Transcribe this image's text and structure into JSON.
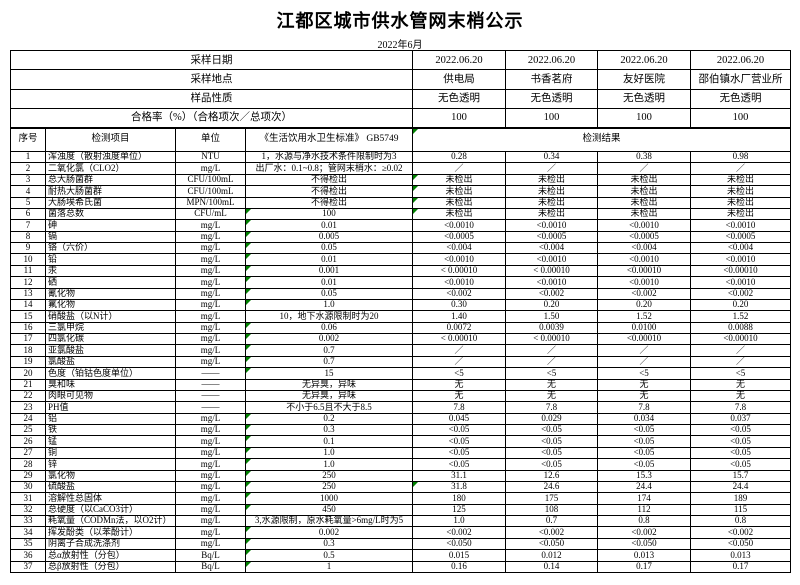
{
  "title": "江都区城市供水管网末梢公示",
  "subtitle": "2022年6月",
  "colors": {
    "flag_triangle_green": "#008000",
    "border": "#000000"
  },
  "info_rows": [
    {
      "label": "采样日期",
      "values": [
        "2022.06.20",
        "2022.06.20",
        "2022.06.20",
        "2022.06.20"
      ]
    },
    {
      "label": "采样地点",
      "values": [
        "供电局",
        "书香茗府",
        "友好医院",
        "邵伯镇水厂营业所"
      ]
    },
    {
      "label": "样品性质",
      "values": [
        "无色透明",
        "无色透明",
        "无色透明",
        "无色透明"
      ]
    },
    {
      "label": "合格率（%）（合格项次／总项次）",
      "values": [
        "100",
        "100",
        "100",
        "100"
      ]
    }
  ],
  "main_table": {
    "headers": {
      "no": "序号",
      "item": "检测项目",
      "unit": "单位",
      "standard": "《生活饮用水卫生标准》 GB5749",
      "results": "检测结果"
    },
    "rows": [
      {
        "no": "1",
        "item": "浑浊度（散射浊度单位）",
        "unit": "NTU",
        "standard": "1，水源与净水技术条件限制时为3",
        "results": [
          "0.28",
          "0.34",
          "0.38",
          "0.98"
        ]
      },
      {
        "no": "2",
        "item": "二氧化氯（CLO2）",
        "unit": "mg/L",
        "standard": "出厂水：0.1~0.8；管网末梢水：≥0.02",
        "results": [
          "／",
          "／",
          "／",
          "／"
        ]
      },
      {
        "no": "3",
        "item": "总大肠菌群",
        "unit": "CFU/100mL",
        "standard": "不得检出",
        "results": [
          "未检出",
          "未检出",
          "未检出",
          "未检出"
        ],
        "res1_mark": true
      },
      {
        "no": "4",
        "item": "耐热大肠菌群",
        "unit": "CFU/100mL",
        "standard": "不得检出",
        "results": [
          "未检出",
          "未检出",
          "未检出",
          "未检出"
        ],
        "res1_mark": true
      },
      {
        "no": "5",
        "item": "大肠埃希氏菌",
        "unit": "MPN/100mL",
        "standard": "不得检出",
        "results": [
          "未检出",
          "未检出",
          "未检出",
          "未检出"
        ],
        "res1_mark": true
      },
      {
        "no": "6",
        "item": "菌落总数",
        "unit": "CFU/mL",
        "standard": "100",
        "std_mark": true,
        "results": [
          "未检出",
          "未检出",
          "未检出",
          "未检出"
        ],
        "res1_mark": true
      },
      {
        "no": "7",
        "item": "砷",
        "unit": "mg/L",
        "standard": "0.01",
        "std_mark": true,
        "results": [
          "<0.0010",
          "<0.0010",
          "<0.0010",
          "<0.0010"
        ]
      },
      {
        "no": "8",
        "item": "镉",
        "unit": "mg/L",
        "standard": "0.005",
        "std_mark": true,
        "results": [
          "<0.0005",
          "<0.0005",
          "<0.0005",
          "<0.0005"
        ]
      },
      {
        "no": "9",
        "item": "铬（六价）",
        "unit": "mg/L",
        "standard": "0.05",
        "std_mark": true,
        "results": [
          "<0.004",
          "<0.004",
          "<0.004",
          "<0.004"
        ]
      },
      {
        "no": "10",
        "item": "铅",
        "unit": "mg/L",
        "standard": "0.01",
        "std_mark": true,
        "results": [
          "<0.0010",
          "<0.0010",
          "<0.0010",
          "<0.0010"
        ]
      },
      {
        "no": "11",
        "item": "汞",
        "unit": "mg/L",
        "standard": "0.001",
        "std_mark": true,
        "results": [
          "< 0.00010",
          "< 0.00010",
          "<0.00010",
          "<0.00010"
        ]
      },
      {
        "no": "12",
        "item": "硒",
        "unit": "mg/L",
        "standard": "0.01",
        "std_mark": true,
        "results": [
          "<0.0010",
          "<0.0010",
          "<0.0010",
          "<0.0010"
        ]
      },
      {
        "no": "13",
        "item": "氰化物",
        "unit": "mg/L",
        "standard": "0.05",
        "std_mark": true,
        "results": [
          "<0.002",
          "<0.002",
          "<0.002",
          "<0.002"
        ]
      },
      {
        "no": "14",
        "item": "氟化物",
        "unit": "mg/L",
        "standard": "1.0",
        "std_mark": true,
        "results": [
          "0.30",
          "0.20",
          "0.20",
          "0.20"
        ]
      },
      {
        "no": "15",
        "item": "硝酸盐（以N计）",
        "unit": "mg/L",
        "standard": "10，地下水源限制时为20",
        "results": [
          "1.40",
          "1.50",
          "1.52",
          "1.52"
        ]
      },
      {
        "no": "16",
        "item": "三氯甲烷",
        "unit": "mg/L",
        "standard": "0.06",
        "std_mark": true,
        "results": [
          "0.0072",
          "0.0039",
          "0.0100",
          "0.0088"
        ]
      },
      {
        "no": "17",
        "item": "四氯化碳",
        "unit": "mg/L",
        "standard": "0.002",
        "std_mark": true,
        "results": [
          "< 0.00010",
          "< 0.00010",
          "<0.00010",
          "<0.00010"
        ]
      },
      {
        "no": "18",
        "item": "亚氯酸盐",
        "unit": "mg/L",
        "standard": "0.7",
        "std_mark": true,
        "results": [
          "／",
          "／",
          "／",
          "／"
        ]
      },
      {
        "no": "19",
        "item": "氯酸盐",
        "unit": "mg/L",
        "standard": "0.7",
        "std_mark": true,
        "results": [
          "／",
          "／",
          "／",
          "／"
        ]
      },
      {
        "no": "20",
        "item": "色度（铂钴色度单位）",
        "unit": "——",
        "standard": "15",
        "std_mark": true,
        "results": [
          "<5",
          "<5",
          "<5",
          "<5"
        ]
      },
      {
        "no": "21",
        "item": "臭和味",
        "unit": "——",
        "standard": "无异臭，异味",
        "results": [
          "无",
          "无",
          "无",
          "无"
        ]
      },
      {
        "no": "22",
        "item": "肉眼可见物",
        "unit": "——",
        "standard": "无异臭，异味",
        "results": [
          "无",
          "无",
          "无",
          "无"
        ]
      },
      {
        "no": "23",
        "item": "PH值",
        "unit": "——",
        "standard": "不小于6.5且不大于8.5",
        "results": [
          "7.8",
          "7.8",
          "7.8",
          "7.8"
        ]
      },
      {
        "no": "24",
        "item": "铝",
        "unit": "mg/L",
        "standard": "0.2",
        "std_mark": true,
        "results": [
          "0.045",
          "0.029",
          "0.034",
          "0.037"
        ]
      },
      {
        "no": "25",
        "item": "铁",
        "unit": "mg/L",
        "standard": "0.3",
        "std_mark": true,
        "results": [
          "<0.05",
          "<0.05",
          "<0.05",
          "<0.05"
        ]
      },
      {
        "no": "26",
        "item": "锰",
        "unit": "mg/L",
        "standard": "0.1",
        "std_mark": true,
        "results": [
          "<0.05",
          "<0.05",
          "<0.05",
          "<0.05"
        ]
      },
      {
        "no": "27",
        "item": "铜",
        "unit": "mg/L",
        "standard": "1.0",
        "std_mark": true,
        "results": [
          "<0.05",
          "<0.05",
          "<0.05",
          "<0.05"
        ]
      },
      {
        "no": "28",
        "item": "锌",
        "unit": "mg/L",
        "standard": "1.0",
        "std_mark": true,
        "results": [
          "<0.05",
          "<0.05",
          "<0.05",
          "<0.05"
        ]
      },
      {
        "no": "29",
        "item": "氯化物",
        "unit": "mg/L",
        "standard": "250",
        "std_mark": true,
        "results": [
          "31.1",
          "12.6",
          "15.3",
          "15.7"
        ]
      },
      {
        "no": "30",
        "item": "硫酸盐",
        "unit": "mg/L",
        "standard": "250",
        "std_mark": true,
        "results": [
          "31.8",
          "24.6",
          "24.4",
          "24.4"
        ],
        "res1_mark": true
      },
      {
        "no": "31",
        "item": "溶解性总固体",
        "unit": "mg/L",
        "standard": "1000",
        "std_mark": true,
        "results": [
          "180",
          "175",
          "174",
          "189"
        ]
      },
      {
        "no": "32",
        "item": "总硬度（以CaCO3计）",
        "unit": "mg/L",
        "standard": "450",
        "std_mark": true,
        "results": [
          "125",
          "108",
          "112",
          "115"
        ]
      },
      {
        "no": "33",
        "item": "耗氧量（CODMn法，以O2计）",
        "unit": "mg/L",
        "standard": "3,水源限制，原水耗氧量>6mg/L时为5",
        "results": [
          "1.0",
          "0.7",
          "0.8",
          "0.8"
        ]
      },
      {
        "no": "34",
        "item": "挥发酚类（以苯酚计）",
        "unit": "mg/L",
        "standard": "0.002",
        "std_mark": true,
        "results": [
          "<0.002",
          "<0.002",
          "<0.002",
          "<0.002"
        ]
      },
      {
        "no": "35",
        "item": "阴离子合成洗涤剂",
        "unit": "mg/L",
        "standard": "0.3",
        "std_mark": true,
        "results": [
          "<0.050",
          "<0.050",
          "<0.050",
          "<0.050"
        ]
      },
      {
        "no": "36",
        "item": "总α放射性（分包）",
        "unit": "Bq/L",
        "standard": "0.5",
        "std_mark": true,
        "results": [
          "0.015",
          "0.012",
          "0.013",
          "0.013"
        ]
      },
      {
        "no": "37",
        "item": "总β放射性（分包）",
        "unit": "Bq/L",
        "standard": "1",
        "std_mark": true,
        "results": [
          "0.16",
          "0.14",
          "0.17",
          "0.17"
        ]
      }
    ]
  }
}
